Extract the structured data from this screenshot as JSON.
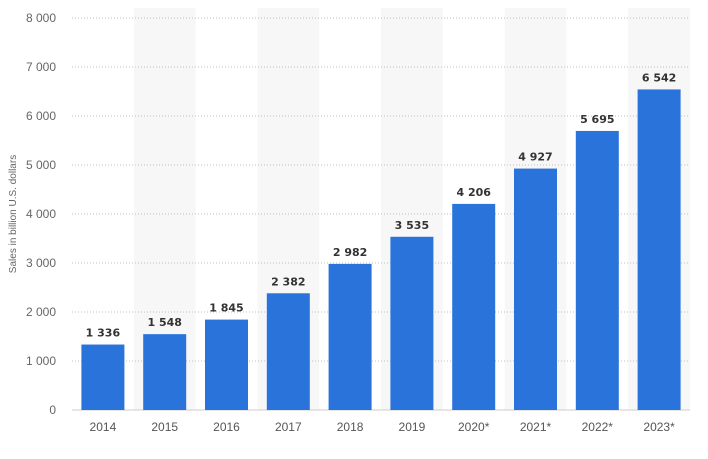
{
  "chart_data": {
    "type": "bar",
    "categories": [
      "2014",
      "2015",
      "2016",
      "2017",
      "2018",
      "2019",
      "2020*",
      "2021*",
      "2022*",
      "2023*"
    ],
    "values": [
      1336,
      1548,
      1845,
      2382,
      2982,
      3535,
      4206,
      4927,
      5695,
      6542
    ],
    "value_labels": [
      "1 336",
      "1 548",
      "1 845",
      "2 382",
      "2 982",
      "3 535",
      "4 206",
      "4 927",
      "5 695",
      "6 542"
    ],
    "ylabel": "Sales in billion U.S. dollars",
    "ylim": [
      0,
      8000
    ],
    "yticks": [
      0,
      1000,
      2000,
      3000,
      4000,
      5000,
      6000,
      7000,
      8000
    ],
    "ytick_labels": [
      "0",
      "1 000",
      "2 000",
      "3 000",
      "4 000",
      "5 000",
      "6 000",
      "7 000",
      "8 000"
    ],
    "grid": true,
    "bar_color": "#2a73db"
  }
}
